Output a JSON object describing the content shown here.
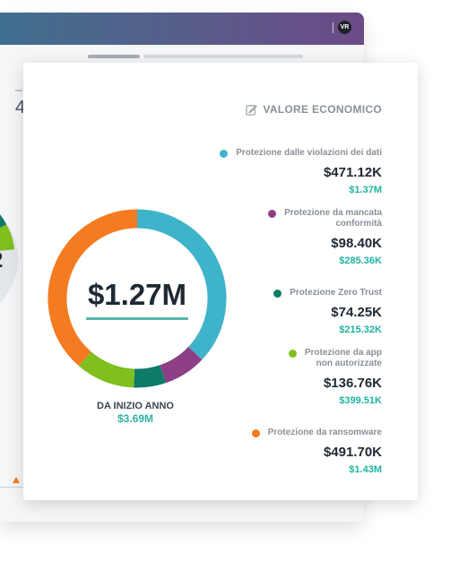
{
  "header": {
    "avatar_initials": "VR"
  },
  "background": {
    "partial_number": "4",
    "partial_donut_value": "2"
  },
  "card": {
    "title": "VALORE ECONOMICO",
    "total": "$1.27M",
    "ytd_label": "DA INIZIO ANNO",
    "ytd_value": "$3.69M"
  },
  "legend": [
    {
      "name_lines": [
        "Protezione dalle violazioni dei dati"
      ],
      "amount": "$471.12K",
      "ytd": "$1.37M",
      "color": "#3fb3c9"
    },
    {
      "name_lines": [
        "Protezione da mancata",
        "conformità"
      ],
      "amount": "$98.40K",
      "ytd": "$285.36K",
      "color": "#8d3f86"
    },
    {
      "name_lines": [
        "Protezione Zero Trust"
      ],
      "amount": "$74.25K",
      "ytd": "$215.32K",
      "color": "#0e7a68"
    },
    {
      "name_lines": [
        "Protezione da app",
        "non autorizzate"
      ],
      "amount": "$136.76K",
      "ytd": "$399.51K",
      "color": "#7fbf1e"
    },
    {
      "name_lines": [
        "Protezione da ransomware"
      ],
      "amount": "$491.70K",
      "ytd": "$1.43M",
      "color": "#f47b20"
    }
  ],
  "chart_data": {
    "type": "pie",
    "categories": [
      "Protezione dalle violazioni dei dati",
      "Protezione da mancata conformità",
      "Protezione Zero Trust",
      "Protezione da app non autorizzate",
      "Protezione da ransomware"
    ],
    "values": [
      471.12,
      98.4,
      74.25,
      136.76,
      491.7
    ],
    "unit": "K",
    "colors": [
      "#3fb3c9",
      "#8d3f86",
      "#0e7a68",
      "#7fbf1e",
      "#f47b20"
    ]
  }
}
